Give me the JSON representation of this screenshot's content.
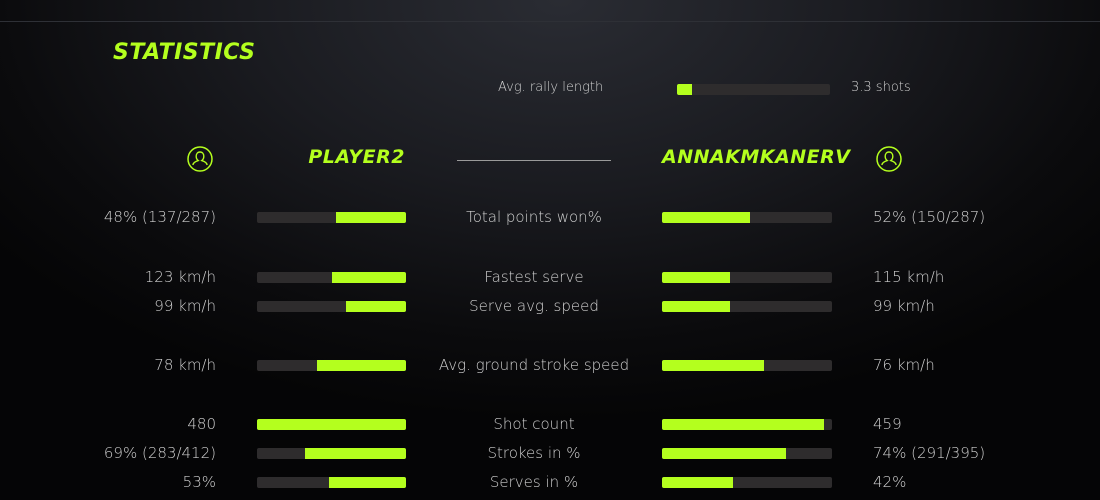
{
  "title": "STATISTICS",
  "accent_color": "#b4ff1e",
  "rally": {
    "label": "Avg. rally length",
    "value": "3.3 shots",
    "fill_pct": 10
  },
  "players": {
    "left": {
      "name": "PLAYER2",
      "icon": "user-circle-icon"
    },
    "right": {
      "name": "ANNAKMKANERV",
      "icon": "user-circle-icon"
    }
  },
  "stats": [
    {
      "label": "Total points won%",
      "left": "48% (137/287)",
      "right": "52% (150/287)",
      "left_pct": 47,
      "right_pct": 52
    },
    {
      "label": "Fastest serve",
      "left": "123 km/h",
      "right": "115 km/h",
      "left_pct": 50,
      "right_pct": 40
    },
    {
      "label": "Serve avg. speed",
      "left": "99 km/h",
      "right": "99 km/h",
      "left_pct": 40,
      "right_pct": 40
    },
    {
      "label": "Avg. ground stroke speed",
      "left": "78 km/h",
      "right": "76 km/h",
      "left_pct": 60,
      "right_pct": 60
    },
    {
      "label": "Shot count",
      "left": "480",
      "right": "459",
      "left_pct": 100,
      "right_pct": 95
    },
    {
      "label": "Strokes in %",
      "left": "69% (283/412)",
      "right": "74% (291/395)",
      "left_pct": 68,
      "right_pct": 73
    },
    {
      "label": "Serves in %",
      "left": "53%",
      "right": "42%",
      "left_pct": 52,
      "right_pct": 42
    }
  ]
}
